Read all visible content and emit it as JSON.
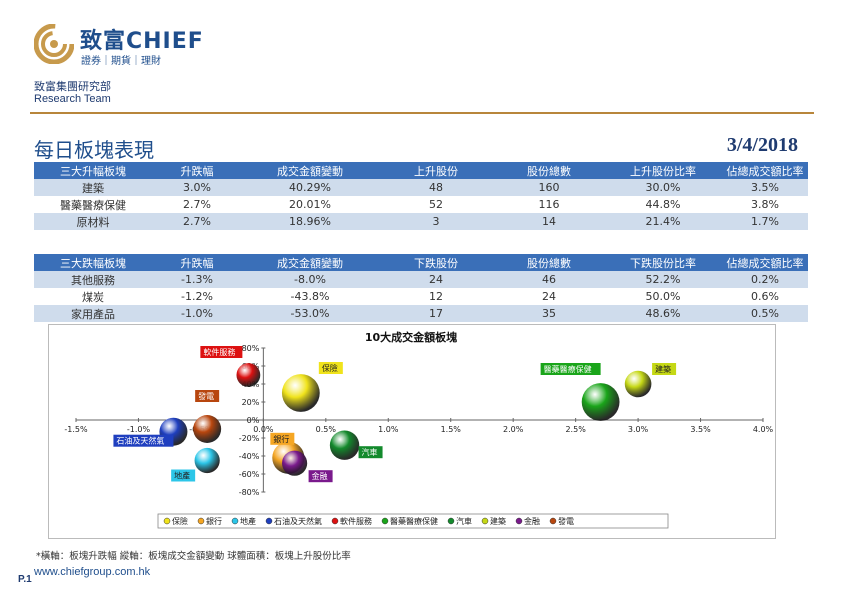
{
  "brand": {
    "name": "致富CHIEF",
    "tagline": "證券｜期貨｜理財"
  },
  "department": {
    "cn": "致富集團研究部",
    "en": "Research Team"
  },
  "page_title": "每日板塊表現",
  "page_date": "3/4/2018",
  "table_up": {
    "headers": [
      "三大升幅板塊",
      "升跌幅",
      "成交金額變動",
      "上升股份",
      "股份總數",
      "上升股份比率",
      "佔總成交額比率"
    ],
    "rows": [
      [
        "建築",
        "3.0%",
        "40.29%",
        "48",
        "160",
        "30.0%",
        "3.5%"
      ],
      [
        "醫藥醫療保健",
        "2.7%",
        "20.01%",
        "52",
        "116",
        "44.8%",
        "3.8%"
      ],
      [
        "原材料",
        "2.7%",
        "18.96%",
        "3",
        "14",
        "21.4%",
        "1.7%"
      ]
    ]
  },
  "table_down": {
    "headers": [
      "三大跌幅板塊",
      "升跌幅",
      "成交金額變動",
      "下跌股份",
      "股份總數",
      "下跌股份比率",
      "佔總成交額比率"
    ],
    "rows": [
      [
        "其他服務",
        "-1.3%",
        "-8.0%",
        "24",
        "46",
        "52.2%",
        "0.2%"
      ],
      [
        "煤炭",
        "-1.2%",
        "-43.8%",
        "12",
        "24",
        "50.0%",
        "0.6%"
      ],
      [
        "家用產品",
        "-1.0%",
        "-53.0%",
        "17",
        "35",
        "48.6%",
        "0.5%"
      ]
    ]
  },
  "chart_data": {
    "type": "scatter",
    "title": "10大成交金額板塊",
    "x_ticks": [
      "-1.5%",
      "-1.0%",
      "-0.5%",
      "0.0%",
      "0.5%",
      "1.0%",
      "1.5%",
      "2.0%",
      "2.5%",
      "3.0%",
      "3.5%",
      "4.0%"
    ],
    "y_ticks": [
      "80%",
      "60%",
      "40%",
      "20%",
      "0%",
      "-20%",
      "-40%",
      "-60%",
      "-80%"
    ],
    "xlim": [
      -1.5,
      4.0
    ],
    "ylim": [
      -80,
      80
    ],
    "legend_position": "bottom",
    "series": [
      {
        "name": "保險",
        "x": 0.3,
        "y": 30,
        "size": 1.35,
        "color": "#f0e31b",
        "label_color": "#f0e31b"
      },
      {
        "name": "銀行",
        "x": 0.2,
        "y": -42,
        "size": 1.15,
        "color": "#f5a623",
        "label_color": "#f5a623"
      },
      {
        "name": "地產",
        "x": -0.45,
        "y": -45,
        "size": 0.9,
        "color": "#2cc6e8",
        "label_color": "#2cc6e8"
      },
      {
        "name": "石油及天然氣",
        "x": -0.72,
        "y": -13,
        "size": 1.0,
        "color": "#1f3fbf",
        "label_color": "#1f3fbf"
      },
      {
        "name": "軟件服務",
        "x": -0.12,
        "y": 50,
        "size": 0.85,
        "color": "#dd1111",
        "label_color": "#dd1111"
      },
      {
        "name": "醫藥醫療保健",
        "x": 2.7,
        "y": 20,
        "size": 1.35,
        "color": "#1aa51a",
        "label_color": "#1aa51a"
      },
      {
        "name": "汽車",
        "x": 0.65,
        "y": -28,
        "size": 1.05,
        "color": "#138a2c",
        "label_color": "#138a2c"
      },
      {
        "name": "建築",
        "x": 3.0,
        "y": 40,
        "size": 0.95,
        "color": "#c5d815",
        "label_color": "#c5d815"
      },
      {
        "name": "金融",
        "x": 0.25,
        "y": -48,
        "size": 0.9,
        "color": "#7a1a8c",
        "label_color": "#7a1a8c"
      },
      {
        "name": "發電",
        "x": -0.45,
        "y": -10,
        "size": 1.0,
        "color": "#b8460e",
        "label_color": "#b8460e"
      }
    ]
  },
  "footnote": "*橫軸：板塊升跌幅      縱軸：板塊成交金額變動      球體面積：板塊上升股份比率",
  "page_number": "P.1",
  "website": "www.chiefgroup.com.hk"
}
